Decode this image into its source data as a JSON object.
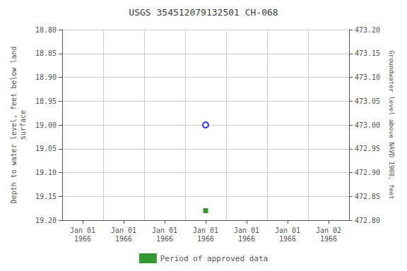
{
  "chart_data": {
    "type": "scatter",
    "title": "USGS 354512079132501 CH-068",
    "x_label": null,
    "ylabel": "Depth to water level, feet below land\nsurface",
    "y2label": "Groundwater level above NAVD 1988, feet",
    "categories": [
      "Jan 01\n1966",
      "Jan 01\n1966",
      "Jan 01\n1966",
      "Jan 01\n1966",
      "Jan 01\n1966",
      "Jan 01\n1966",
      "Jan 02\n1966"
    ],
    "series": [
      {
        "color": "blue",
        "marker": "open_circle",
        "values": [
          null,
          null,
          null,
          19.0,
          null,
          null,
          null
        ]
      },
      {
        "name": "Period of approved data",
        "color": "green",
        "marker": "square",
        "values": [
          null,
          null,
          null,
          19.18,
          null,
          null,
          null
        ]
      }
    ],
    "ylim": [
      19.2,
      18.8
    ],
    "yticks": [
      {
        "value": 18.8,
        "label": "18.80"
      },
      18.85,
      {
        "value": 18.9,
        "label": "18.90"
      },
      18.95,
      {
        "value": 19.0,
        "label": "19.00"
      },
      19.05,
      {
        "value": 19.1,
        "label": "19.10"
      },
      19.15,
      {
        "value": 19.2,
        "label": "19.20"
      }
    ],
    "y2lim": [
      472.8,
      473.2
    ],
    "y2ticks": [
      {
        "value": 473.2,
        "label": "473.20"
      },
      473.15,
      {
        "value": 473.1,
        "label": "473.10"
      },
      473.05,
      {
        "value": 473.0,
        "label": "473.00"
      },
      472.95,
      {
        "value": 472.9,
        "label": "472.90"
      },
      472.85,
      {
        "value": 472.8,
        "label": "472.80"
      }
    ],
    "grid": true,
    "legend": "bottom"
  }
}
